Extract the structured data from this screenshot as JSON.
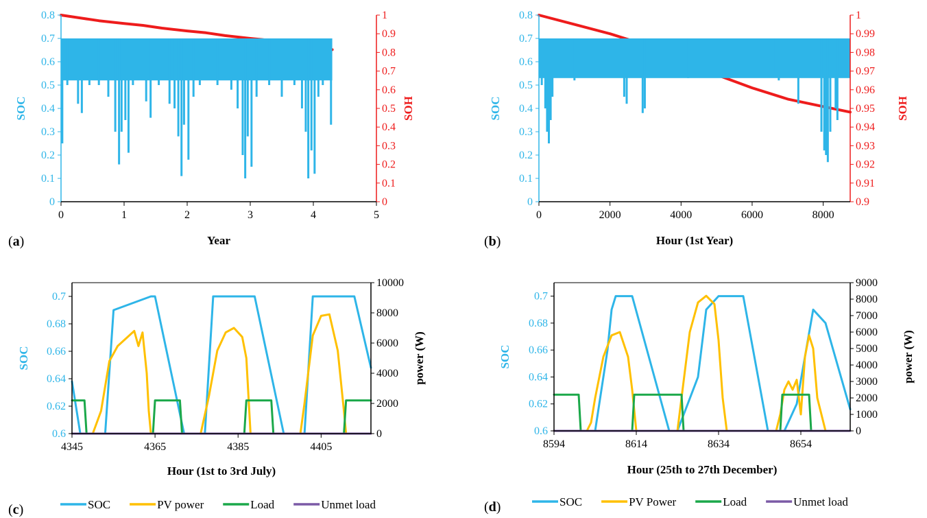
{
  "colors": {
    "soc": "#2EB5E8",
    "soh": "#EE1C1C",
    "pv": "#FFC000",
    "load": "#1BA84A",
    "unmet": "#7B5AA6",
    "axis_black": "#000000"
  },
  "chart_data": [
    {
      "id": "a",
      "type": "line",
      "panel_label": [
        "(",
        "a",
        ")"
      ],
      "xlabel": "Year",
      "ylabel_left": "SOC",
      "ylabel_right": "SOH",
      "xlim": [
        0,
        5
      ],
      "ylim_left": [
        0,
        0.8
      ],
      "ylim_right": [
        0,
        1
      ],
      "x_ticks": [
        0,
        1,
        2,
        3,
        4,
        5
      ],
      "y_ticks_left": [
        0,
        0.1,
        0.2,
        0.3,
        0.4,
        0.5,
        0.6,
        0.7,
        0.8
      ],
      "y_ticks_right": [
        0,
        0.1,
        0.2,
        0.3,
        0.4,
        0.5,
        0.6,
        0.7,
        0.8,
        0.9,
        1
      ],
      "grid": false,
      "series": [
        {
          "name": "SOH",
          "axis": "right",
          "color": "soh",
          "x": [
            0,
            0.3,
            0.6,
            1,
            1.3,
            1.6,
            2,
            2.3,
            2.6,
            3,
            3.3,
            3.6,
            4,
            4.3
          ],
          "values": [
            1,
            0.985,
            0.97,
            0.955,
            0.945,
            0.93,
            0.915,
            0.905,
            0.89,
            0.875,
            0.865,
            0.85,
            0.83,
            0.815
          ]
        },
        {
          "name": "SOC",
          "axis": "left",
          "color": "soc",
          "band": true,
          "x_range": [
            0,
            4.3
          ],
          "band_top": 0.7,
          "band_bottom": 0.52,
          "dips": [
            [
              0.02,
              0.25
            ],
            [
              0.1,
              0.5
            ],
            [
              0.27,
              0.42
            ],
            [
              0.33,
              0.38
            ],
            [
              0.45,
              0.5
            ],
            [
              0.6,
              0.5
            ],
            [
              0.75,
              0.45
            ],
            [
              0.86,
              0.3
            ],
            [
              0.92,
              0.16
            ],
            [
              0.96,
              0.3
            ],
            [
              1.02,
              0.35
            ],
            [
              1.07,
              0.21
            ],
            [
              1.14,
              0.5
            ],
            [
              1.35,
              0.43
            ],
            [
              1.42,
              0.36
            ],
            [
              1.55,
              0.5
            ],
            [
              1.72,
              0.42
            ],
            [
              1.8,
              0.4
            ],
            [
              1.86,
              0.28
            ],
            [
              1.91,
              0.11
            ],
            [
              1.95,
              0.33
            ],
            [
              2.02,
              0.18
            ],
            [
              2.1,
              0.45
            ],
            [
              2.2,
              0.5
            ],
            [
              2.48,
              0.5
            ],
            [
              2.7,
              0.48
            ],
            [
              2.8,
              0.4
            ],
            [
              2.88,
              0.2
            ],
            [
              2.92,
              0.1
            ],
            [
              2.96,
              0.28
            ],
            [
              3.02,
              0.15
            ],
            [
              3.1,
              0.45
            ],
            [
              3.3,
              0.5
            ],
            [
              3.5,
              0.45
            ],
            [
              3.7,
              0.5
            ],
            [
              3.82,
              0.4
            ],
            [
              3.88,
              0.3
            ],
            [
              3.92,
              0.1
            ],
            [
              3.97,
              0.22
            ],
            [
              4.02,
              0.12
            ],
            [
              4.08,
              0.45
            ],
            [
              4.15,
              0.5
            ],
            [
              4.28,
              0.33
            ]
          ]
        }
      ]
    },
    {
      "id": "b",
      "type": "line",
      "panel_label": [
        "(",
        "b",
        ")"
      ],
      "xlabel": "Hour (1st Year)",
      "ylabel_left": "SOC",
      "ylabel_right": "SOH",
      "xlim": [
        0,
        8760
      ],
      "ylim_left": [
        0,
        0.8
      ],
      "ylim_right": [
        0.9,
        1
      ],
      "x_ticks": [
        0,
        2000,
        4000,
        6000,
        8000
      ],
      "y_ticks_left": [
        0,
        0.1,
        0.2,
        0.3,
        0.4,
        0.5,
        0.6,
        0.7,
        0.8
      ],
      "y_ticks_right": [
        0.9,
        0.91,
        0.92,
        0.93,
        0.94,
        0.95,
        0.96,
        0.97,
        0.98,
        0.99,
        1
      ],
      "grid": false,
      "series": [
        {
          "name": "SOH",
          "axis": "right",
          "color": "soh",
          "x": [
            0,
            1000,
            2000,
            3000,
            4000,
            5000,
            6000,
            7000,
            8000,
            8760
          ],
          "values": [
            1,
            0.995,
            0.99,
            0.984,
            0.976,
            0.968,
            0.961,
            0.955,
            0.951,
            0.948
          ]
        },
        {
          "name": "SOC",
          "axis": "left",
          "color": "soc",
          "band": true,
          "x_range": [
            0,
            8760
          ],
          "band_top": 0.7,
          "band_bottom": 0.53,
          "extra_bands": [
            [
              3000,
              7900,
              0.7,
              0.57
            ]
          ],
          "dips": [
            [
              80,
              0.5
            ],
            [
              180,
              0.4
            ],
            [
              230,
              0.3
            ],
            [
              280,
              0.25
            ],
            [
              330,
              0.35
            ],
            [
              380,
              0.45
            ],
            [
              1000,
              0.52
            ],
            [
              2400,
              0.45
            ],
            [
              2470,
              0.42
            ],
            [
              2920,
              0.38
            ],
            [
              2980,
              0.4
            ],
            [
              4200,
              0.53
            ],
            [
              5100,
              0.55
            ],
            [
              6600,
              0.55
            ],
            [
              6750,
              0.52
            ],
            [
              7300,
              0.42
            ],
            [
              7950,
              0.3
            ],
            [
              8030,
              0.22
            ],
            [
              8080,
              0.2
            ],
            [
              8130,
              0.17
            ],
            [
              8200,
              0.3
            ],
            [
              8350,
              0.4
            ],
            [
              8400,
              0.35
            ]
          ]
        }
      ]
    },
    {
      "id": "c",
      "type": "line",
      "panel_label": [
        "(",
        "c",
        ")"
      ],
      "xlabel": "Hour (1st to 3rd July)",
      "ylabel_left": "SOC",
      "ylabel_right": "power (W)",
      "xlim": [
        4345,
        4417
      ],
      "ylim_left": [
        0.6,
        0.71
      ],
      "ylim_right": [
        0,
        10000
      ],
      "x_ticks": [
        4345,
        4365,
        4385,
        4405
      ],
      "y_ticks_left": [
        0.6,
        0.62,
        0.64,
        0.66,
        0.68,
        0.7
      ],
      "y_ticks_right": [
        0,
        2000,
        4000,
        6000,
        8000,
        10000
      ],
      "grid": false,
      "legend_position": "bottom",
      "series": [
        {
          "name": "SOC",
          "axis": "left",
          "color": "soc",
          "x": [
            4345,
            4347,
            4353,
            4355,
            4364,
            4365,
            4372,
            4374,
            4377,
            4379,
            4388,
            4389,
            4396,
            4398,
            4401,
            4403,
            4412,
            4413,
            4417
          ],
          "values": [
            0.638,
            0.6,
            0.6,
            0.69,
            0.7,
            0.7,
            0.6,
            0.6,
            0.6,
            0.7,
            0.7,
            0.7,
            0.6,
            0.6,
            0.6,
            0.7,
            0.7,
            0.7,
            0.648
          ]
        },
        {
          "name": "PV power",
          "axis": "right",
          "color": "pv",
          "x": [
            4345,
            4350,
            4352,
            4354,
            4356,
            4358,
            4360,
            4361,
            4362,
            4363,
            4363.5,
            4364,
            4376,
            4378,
            4380,
            4382,
            4384,
            4386,
            4387,
            4388,
            4400,
            4401,
            4403,
            4405,
            4407,
            4409,
            4410.5,
            4411,
            4417
          ],
          "values": [
            0,
            0,
            1500,
            4800,
            5800,
            6300,
            6800,
            5800,
            6700,
            4000,
            1500,
            0,
            0,
            2500,
            5500,
            6700,
            7000,
            6400,
            5000,
            0,
            0,
            2000,
            6500,
            7800,
            7900,
            5500,
            1500,
            0,
            0
          ]
        },
        {
          "name": "Load",
          "axis": "right",
          "color": "load",
          "x": [
            4345,
            4348,
            4348.5,
            4351,
            4351.5,
            4364.5,
            4365,
            4371,
            4371.5,
            4377,
            4377.5,
            4386.5,
            4387,
            4393,
            4393.5,
            4400,
            4400.5,
            4410.5,
            4411,
            4417
          ],
          "values": [
            2200,
            2200,
            0,
            0,
            0,
            0,
            2200,
            2200,
            0,
            0,
            0,
            0,
            2200,
            2200,
            0,
            0,
            0,
            0,
            2200,
            2200
          ]
        },
        {
          "name": "Unmet load",
          "axis": "right",
          "color": "unmet",
          "x": [
            4345,
            4417
          ],
          "values": [
            0,
            0
          ]
        }
      ]
    },
    {
      "id": "d",
      "type": "line",
      "panel_label": [
        "(",
        "d",
        ")"
      ],
      "xlabel": "Hour (25th to 27th December)",
      "ylabel_left": "SOC",
      "ylabel_right": "power (W)",
      "xlim": [
        8594,
        8666
      ],
      "ylim_left": [
        0.6,
        0.71
      ],
      "ylim_right": [
        0,
        9000
      ],
      "x_ticks": [
        8594,
        8614,
        8634,
        8654
      ],
      "y_ticks_left": [
        0.6,
        0.62,
        0.64,
        0.66,
        0.68,
        0.7
      ],
      "y_ticks_right": [
        0,
        1000,
        2000,
        3000,
        4000,
        5000,
        6000,
        7000,
        8000,
        9000
      ],
      "grid": false,
      "legend_position": "bottom",
      "series": [
        {
          "name": "SOC",
          "axis": "left",
          "color": "soc",
          "x": [
            8594,
            8602,
            8604,
            8607,
            8608,
            8609,
            8611,
            8613,
            8622,
            8624,
            8629,
            8631,
            8634,
            8640,
            8646,
            8650,
            8653,
            8657,
            8660,
            8666
          ],
          "values": [
            0.6,
            0.6,
            0.6,
            0.66,
            0.69,
            0.7,
            0.7,
            0.7,
            0.6,
            0.6,
            0.64,
            0.69,
            0.7,
            0.7,
            0.6,
            0.6,
            0.62,
            0.69,
            0.68,
            0.616
          ]
        },
        {
          "name": "PV Power",
          "axis": "right",
          "color": "pv",
          "x": [
            8594,
            8602,
            8603,
            8604,
            8606,
            8608,
            8610,
            8612,
            8613,
            8614,
            8624,
            8625,
            8627,
            8629,
            8631,
            8633,
            8634,
            8635,
            8636,
            8648,
            8649,
            8650,
            8651,
            8652,
            8653,
            8654,
            8655,
            8656,
            8657,
            8658,
            8660,
            8666
          ],
          "values": [
            0,
            0,
            500,
            2000,
            4500,
            5800,
            6000,
            4500,
            2500,
            0,
            0,
            2000,
            6000,
            7800,
            8200,
            7700,
            5500,
            2000,
            0,
            0,
            1000,
            2500,
            3000,
            2500,
            3100,
            1000,
            4500,
            5800,
            5000,
            2000,
            0,
            0
          ]
        },
        {
          "name": "Load",
          "axis": "right",
          "color": "load",
          "x": [
            8594,
            8600,
            8600.5,
            8613,
            8613.5,
            8625,
            8625.5,
            8649,
            8649.5,
            8656,
            8656.5,
            8666
          ],
          "values": [
            2200,
            2200,
            0,
            0,
            2200,
            2200,
            0,
            0,
            2200,
            2200,
            0,
            0
          ]
        },
        {
          "name": "Unmet load",
          "axis": "right",
          "color": "unmet",
          "x": [
            8594,
            8666
          ],
          "values": [
            0,
            0
          ]
        }
      ]
    }
  ]
}
